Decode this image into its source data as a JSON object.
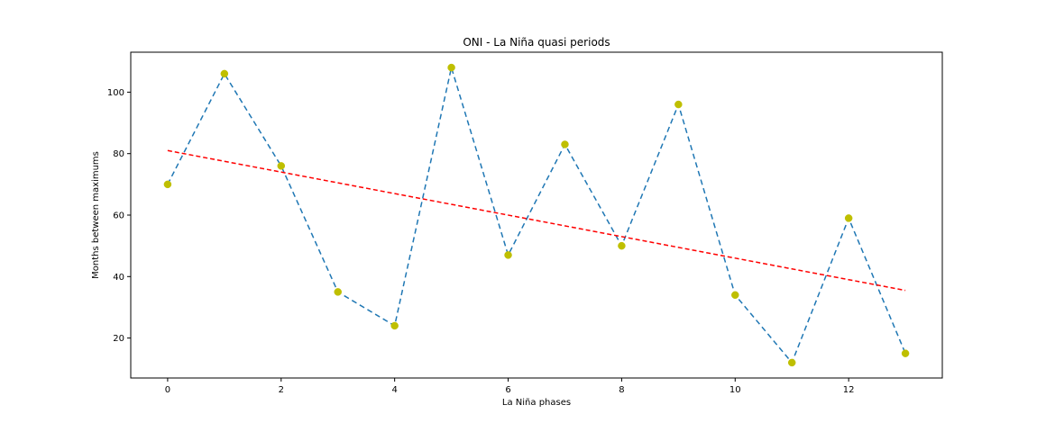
{
  "chart_data": {
    "type": "line",
    "title": "ONI - La Niña quasi periods",
    "xlabel": "La Niña phases",
    "ylabel": "Months between maximums",
    "x": [
      0,
      1,
      2,
      3,
      4,
      5,
      6,
      7,
      8,
      9,
      10,
      11,
      12,
      13
    ],
    "xlim": [
      -0.65,
      13.65
    ],
    "ylim": [
      7,
      113
    ],
    "xticks": [
      0,
      2,
      4,
      6,
      8,
      10,
      12
    ],
    "yticks": [
      20,
      40,
      60,
      80,
      100
    ],
    "grid": false,
    "series": [
      {
        "values": [
          70,
          106,
          76,
          35,
          24,
          108,
          47,
          83,
          50,
          96,
          34,
          12,
          59,
          15
        ],
        "line_color": "#1f77b4",
        "line_style": "dashed",
        "marker_color": "#bfbf00",
        "marker": "circle"
      },
      {
        "type": "trend",
        "x": [
          0,
          13
        ],
        "values": [
          81,
          35.5
        ],
        "line_color": "#ff0000",
        "line_style": "dashed"
      }
    ]
  }
}
